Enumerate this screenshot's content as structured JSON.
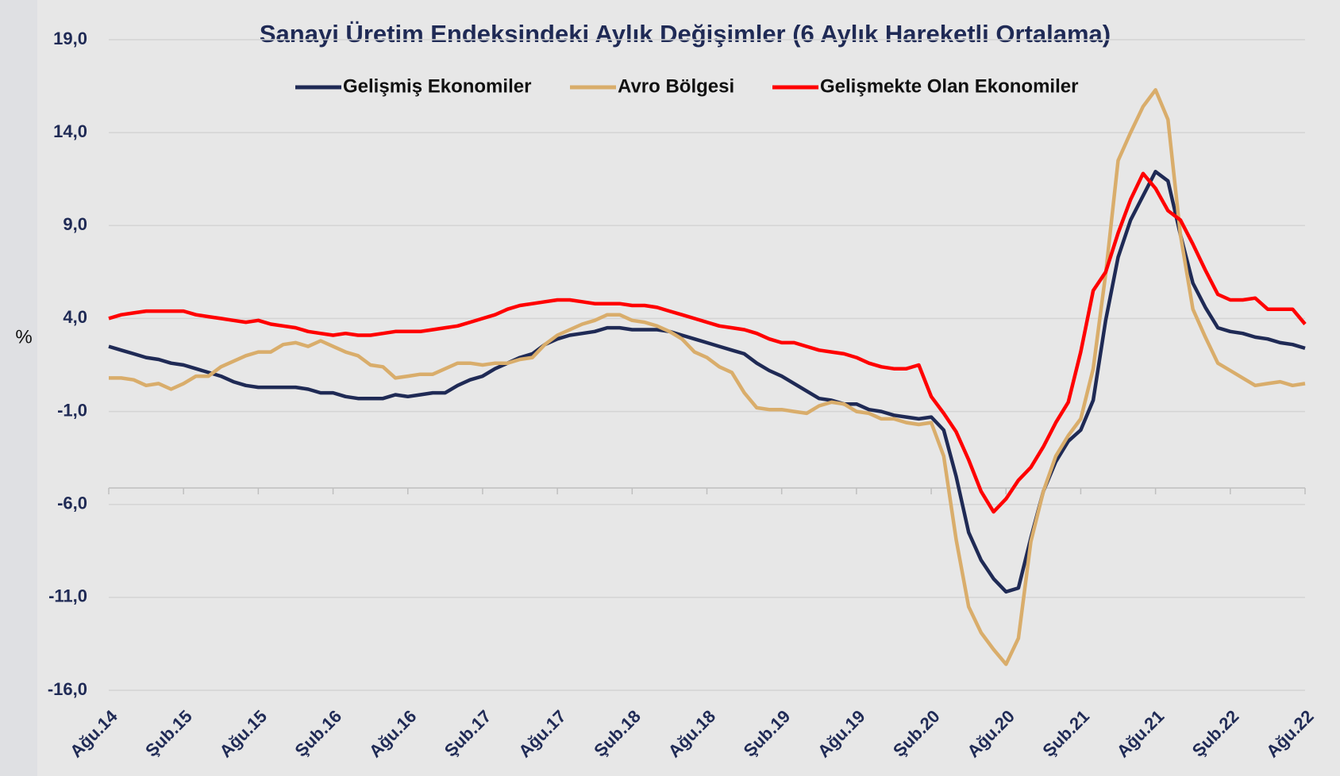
{
  "chart_data": {
    "type": "line",
    "title": "Sanayi Üretim Endeksindeki Aylık Değişimler (6 Aylık Hareketli Ortalama)",
    "y_label": "%",
    "categories": [
      "Ağu.14",
      null,
      null,
      null,
      null,
      null,
      "Şub.15",
      null,
      null,
      null,
      null,
      null,
      "Ağu.15",
      null,
      null,
      null,
      null,
      null,
      "Şub.16",
      null,
      null,
      null,
      null,
      null,
      "Ağu.16",
      null,
      null,
      null,
      null,
      null,
      "Şub.17",
      null,
      null,
      null,
      null,
      null,
      "Ağu.17",
      null,
      null,
      null,
      null,
      null,
      "Şub.18",
      null,
      null,
      null,
      null,
      null,
      "Ağu.18",
      null,
      null,
      null,
      null,
      null,
      "Şub.19",
      null,
      null,
      null,
      null,
      null,
      "Ağu.19",
      null,
      null,
      null,
      null,
      null,
      "Şub.20",
      null,
      null,
      null,
      null,
      null,
      "Ağu.20",
      null,
      null,
      null,
      null,
      null,
      "Şub.21",
      null,
      null,
      null,
      null,
      null,
      "Ağu.21",
      null,
      null,
      null,
      null,
      null,
      "Şub.22",
      null,
      null,
      null,
      null,
      null,
      "Ağu.22"
    ],
    "series": [
      {
        "name": "Gelişmiş Ekonomiler",
        "color": "#1f2a55",
        "values": [
          2.5,
          2.3,
          2.1,
          1.9,
          1.8,
          1.6,
          1.5,
          1.3,
          1.1,
          0.9,
          0.6,
          0.4,
          0.3,
          0.3,
          0.3,
          0.3,
          0.2,
          0.0,
          0.0,
          -0.2,
          -0.3,
          -0.3,
          -0.3,
          -0.1,
          -0.2,
          -0.1,
          0.0,
          0.0,
          0.4,
          0.7,
          0.9,
          1.3,
          1.6,
          1.9,
          2.1,
          2.6,
          2.9,
          3.1,
          3.2,
          3.3,
          3.5,
          3.5,
          3.4,
          3.4,
          3.4,
          3.3,
          3.1,
          2.9,
          2.7,
          2.5,
          2.3,
          2.1,
          1.6,
          1.2,
          0.9,
          0.5,
          0.1,
          -0.3,
          -0.4,
          -0.6,
          -0.6,
          -0.9,
          -1.0,
          -1.2,
          -1.3,
          -1.4,
          -1.3,
          -2.0,
          -4.5,
          -7.5,
          -9.0,
          -10.0,
          -10.7,
          -10.5,
          -7.8,
          -5.3,
          -3.7,
          -2.6,
          -2.0,
          -0.4,
          3.9,
          7.3,
          9.3,
          10.6,
          11.9,
          11.4,
          8.5,
          5.9,
          4.6,
          3.5,
          3.3,
          3.2,
          3.0,
          2.9,
          2.7,
          2.6,
          2.4
        ]
      },
      {
        "name": "Avro Bölgesi",
        "color": "#d9ad6b",
        "values": [
          0.8,
          0.8,
          0.7,
          0.4,
          0.5,
          0.2,
          0.5,
          0.9,
          0.9,
          1.4,
          1.7,
          2.0,
          2.2,
          2.2,
          2.6,
          2.7,
          2.5,
          2.8,
          2.5,
          2.2,
          2.0,
          1.5,
          1.4,
          0.8,
          0.9,
          1.0,
          1.0,
          1.3,
          1.6,
          1.6,
          1.5,
          1.6,
          1.6,
          1.8,
          1.9,
          2.6,
          3.1,
          3.4,
          3.7,
          3.9,
          4.2,
          4.2,
          3.9,
          3.8,
          3.6,
          3.3,
          2.9,
          2.2,
          1.9,
          1.4,
          1.1,
          0.0,
          -0.8,
          -0.9,
          -0.9,
          -1.0,
          -1.1,
          -0.7,
          -0.5,
          -0.6,
          -1.0,
          -1.1,
          -1.4,
          -1.4,
          -1.6,
          -1.7,
          -1.6,
          -3.4,
          -7.9,
          -11.5,
          -12.9,
          -13.8,
          -14.6,
          -13.2,
          -8.0,
          -5.3,
          -3.4,
          -2.3,
          -1.4,
          1.3,
          6.4,
          12.5,
          14.0,
          15.4,
          16.3,
          14.7,
          8.5,
          4.5,
          3.0,
          1.6,
          1.2,
          0.8,
          0.4,
          0.5,
          0.6,
          0.4,
          0.5
        ]
      },
      {
        "name": "Gelişmekte Olan Ekonomiler",
        "color": "#ff0000",
        "values": [
          4.0,
          4.2,
          4.3,
          4.4,
          4.4,
          4.4,
          4.4,
          4.2,
          4.1,
          4.0,
          3.9,
          3.8,
          3.9,
          3.7,
          3.6,
          3.5,
          3.3,
          3.2,
          3.1,
          3.2,
          3.1,
          3.1,
          3.2,
          3.3,
          3.3,
          3.3,
          3.4,
          3.5,
          3.6,
          3.8,
          4.0,
          4.2,
          4.5,
          4.7,
          4.8,
          4.9,
          5.0,
          5.0,
          4.9,
          4.8,
          4.8,
          4.8,
          4.7,
          4.7,
          4.6,
          4.4,
          4.2,
          4.0,
          3.8,
          3.6,
          3.5,
          3.4,
          3.2,
          2.9,
          2.7,
          2.7,
          2.5,
          2.3,
          2.2,
          2.1,
          1.9,
          1.6,
          1.4,
          1.3,
          1.3,
          1.5,
          -0.2,
          -1.1,
          -2.1,
          -3.6,
          -5.3,
          -6.4,
          -5.7,
          -4.7,
          -4.0,
          -2.9,
          -1.6,
          -0.5,
          2.2,
          5.5,
          6.5,
          8.6,
          10.4,
          11.8,
          11.0,
          9.8,
          9.3,
          8.0,
          6.6,
          5.3,
          5.0,
          5.0,
          5.1,
          4.5,
          4.5,
          4.5,
          3.7
        ]
      }
    ],
    "ylim": [
      -16,
      19
    ],
    "yticks": [
      {
        "value": -16,
        "label": "-16,0"
      },
      {
        "value": -11,
        "label": "-11,0"
      },
      {
        "value": -6,
        "label": "-6,0"
      },
      {
        "value": -1,
        "label": "-1,0"
      },
      {
        "value": 4,
        "label": "4,0"
      },
      {
        "value": 9,
        "label": "9,0"
      },
      {
        "value": 14,
        "label": "14,0"
      },
      {
        "value": 19,
        "label": "19,0"
      }
    ],
    "grid": true,
    "legend": "top"
  }
}
